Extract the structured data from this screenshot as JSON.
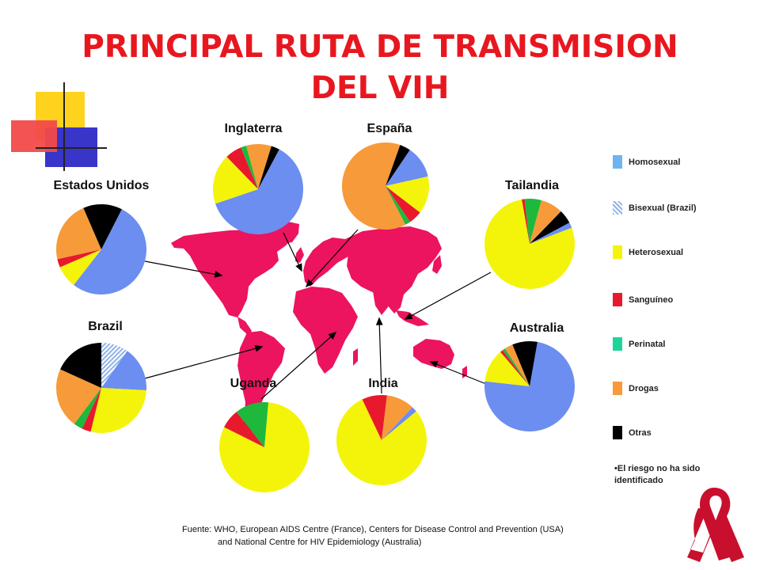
{
  "title": {
    "line1": "PRINCIPAL RUTA DE TRANSMISION",
    "line2": "DEL VIH"
  },
  "legend": [
    {
      "key": "homosexual",
      "label": "Homosexual",
      "color": "#6b8ef0"
    },
    {
      "key": "bisexual",
      "label": "Bisexual (Brazil)",
      "color": "#8fb3e8"
    },
    {
      "key": "heterosexual",
      "label": "Heterosexual",
      "color": "#f4f40a"
    },
    {
      "key": "sanguineo",
      "label": "Sanguíneo",
      "color": "#e8192c"
    },
    {
      "key": "perinatal",
      "label": "Perinatal",
      "color": "#1eb83c"
    },
    {
      "key": "drogas",
      "label": "Drogas",
      "color": "#f79a3a"
    },
    {
      "key": "otras",
      "label": "Otras",
      "color": "#000000"
    }
  ],
  "note": "•El riesgo no ha sido identificado",
  "source": {
    "line1": "Fuente:  WHO, European AIDS Centre (France), Centers for Disease Control and Prevention (USA)",
    "line2": "and National Centre for HIV Epidemiology (Australia)"
  },
  "chart_data": {
    "type": "pie",
    "charts": [
      {
        "name": "Estados Unidos",
        "slices": [
          {
            "category": "homosexual",
            "value": 53
          },
          {
            "category": "heterosexual",
            "value": 8
          },
          {
            "category": "sanguineo",
            "value": 3
          },
          {
            "category": "drogas",
            "value": 22
          },
          {
            "category": "otras",
            "value": 14
          }
        ]
      },
      {
        "name": "Inglaterra",
        "slices": [
          {
            "category": "homosexual",
            "value": 62
          },
          {
            "category": "heterosexual",
            "value": 18
          },
          {
            "category": "sanguineo",
            "value": 6
          },
          {
            "category": "perinatal",
            "value": 2
          },
          {
            "category": "drogas",
            "value": 9
          },
          {
            "category": "otras",
            "value": 3
          }
        ]
      },
      {
        "name": "España",
        "slices": [
          {
            "category": "homosexual",
            "value": 12
          },
          {
            "category": "heterosexual",
            "value": 14
          },
          {
            "category": "sanguineo",
            "value": 5
          },
          {
            "category": "perinatal",
            "value": 2
          },
          {
            "category": "drogas",
            "value": 63
          },
          {
            "category": "otras",
            "value": 4
          }
        ]
      },
      {
        "name": "Tailandia",
        "slices": [
          {
            "category": "homosexual",
            "value": 2
          },
          {
            "category": "heterosexual",
            "value": 78
          },
          {
            "category": "sanguineo",
            "value": 1
          },
          {
            "category": "perinatal",
            "value": 6
          },
          {
            "category": "drogas",
            "value": 8
          },
          {
            "category": "otras",
            "value": 5
          }
        ]
      },
      {
        "name": "Brazil",
        "slices": [
          {
            "category": "homosexual",
            "value": 15
          },
          {
            "category": "heterosexual",
            "value": 26
          },
          {
            "category": "sanguineo",
            "value": 3
          },
          {
            "category": "perinatal",
            "value": 3
          },
          {
            "category": "drogas",
            "value": 20
          },
          {
            "category": "otras",
            "value": 17
          },
          {
            "category": "bisexual",
            "value": 9
          }
        ]
      },
      {
        "name": "Australia",
        "slices": [
          {
            "category": "homosexual",
            "value": 74
          },
          {
            "category": "heterosexual",
            "value": 12
          },
          {
            "category": "sanguineo",
            "value": 1
          },
          {
            "category": "perinatal",
            "value": 1
          },
          {
            "category": "drogas",
            "value": 3
          },
          {
            "category": "otras",
            "value": 9
          }
        ]
      },
      {
        "name": "Uganda",
        "slices": [
          {
            "category": "heterosexual",
            "value": 81
          },
          {
            "category": "sanguineo",
            "value": 7
          },
          {
            "category": "perinatal",
            "value": 12
          }
        ]
      },
      {
        "name": "India",
        "slices": [
          {
            "category": "homosexual",
            "value": 2
          },
          {
            "category": "heterosexual",
            "value": 79
          },
          {
            "category": "sanguineo",
            "value": 9
          },
          {
            "category": "drogas",
            "value": 10
          }
        ]
      }
    ]
  }
}
